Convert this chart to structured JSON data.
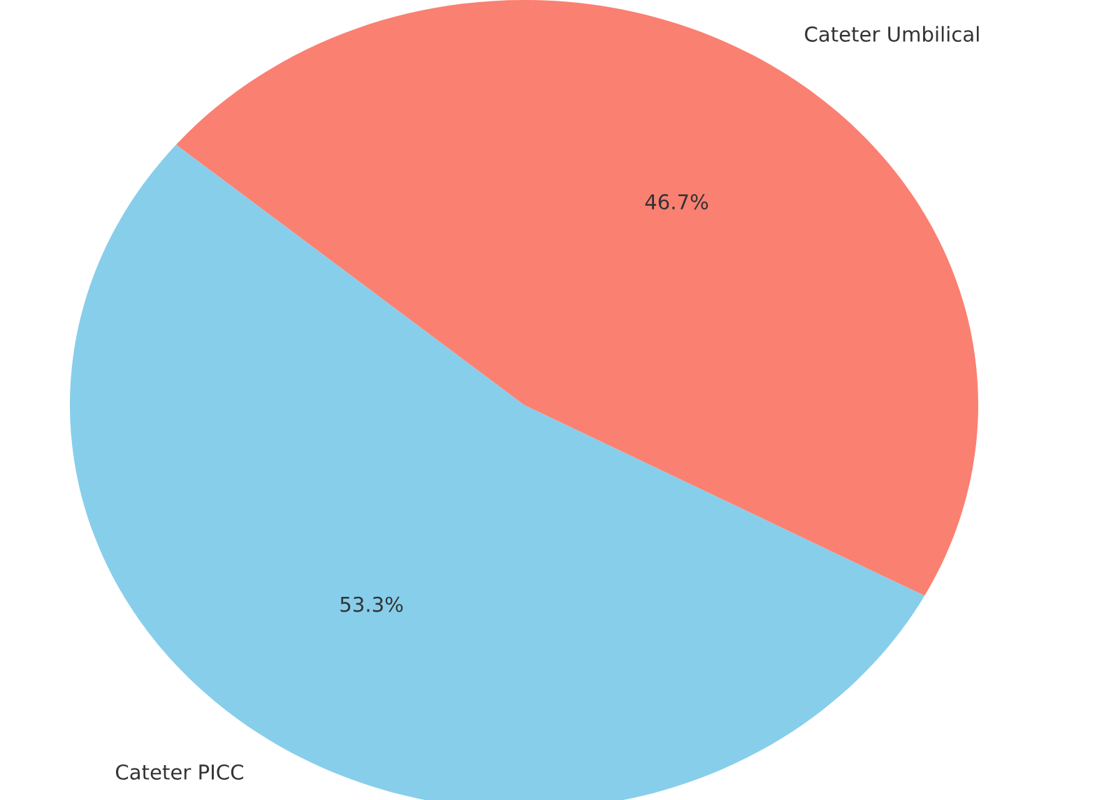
{
  "chart_data": {
    "type": "pie",
    "categories": [
      "Cateter PICC",
      "Cateter Umbilical"
    ],
    "values": [
      53.3,
      46.7
    ],
    "colors": [
      "#87ceeb",
      "#fa8072"
    ],
    "value_labels": [
      "53.3%",
      "46.7%"
    ]
  }
}
